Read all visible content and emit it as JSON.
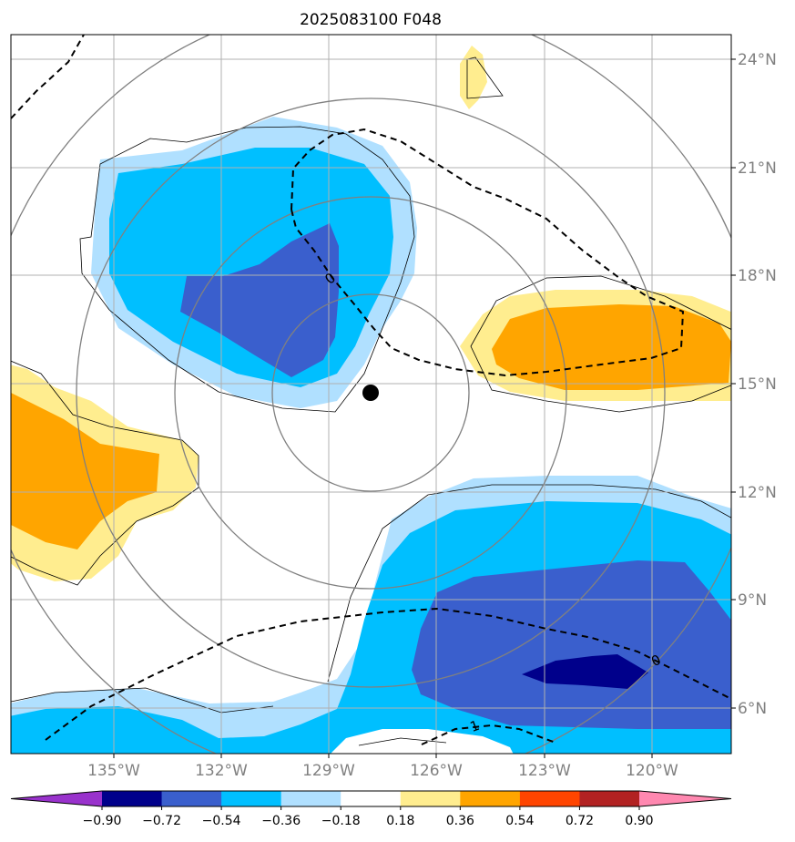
{
  "title": "2025083100 F048",
  "axes": {
    "lon_labels": [
      "135°W",
      "132°W",
      "129°W",
      "126°W",
      "123°W",
      "120°W"
    ],
    "lat_labels": [
      "24°N",
      "21°N",
      "18°N",
      "15°N",
      "12°N",
      "9°N",
      "6°N"
    ]
  },
  "contour_labels": [
    "0",
    "0",
    "1"
  ],
  "colorbar": {
    "ticks": [
      "−0.90",
      "−0.72",
      "−0.54",
      "−0.36",
      "−0.18",
      "0.18",
      "0.36",
      "0.54",
      "0.72",
      "0.90"
    ],
    "colors": [
      "#9932cc",
      "#00008b",
      "#3a5fcd",
      "#00bfff",
      "#b0e0ff",
      "#ffffff",
      "#ffed8f",
      "#ffa500",
      "#ff4500",
      "#b22222",
      "#ff88b0"
    ]
  },
  "colors": {
    "deep_blue": "#00008b",
    "mid_blue": "#3a5fcd",
    "sky_blue": "#00bfff",
    "light_blue": "#b0e0ff",
    "light_yellow": "#ffed8f",
    "orange": "#ffa500",
    "grid": "#b0b0b0",
    "rings": "#808080"
  },
  "storm_center_marker": "filled-circle"
}
